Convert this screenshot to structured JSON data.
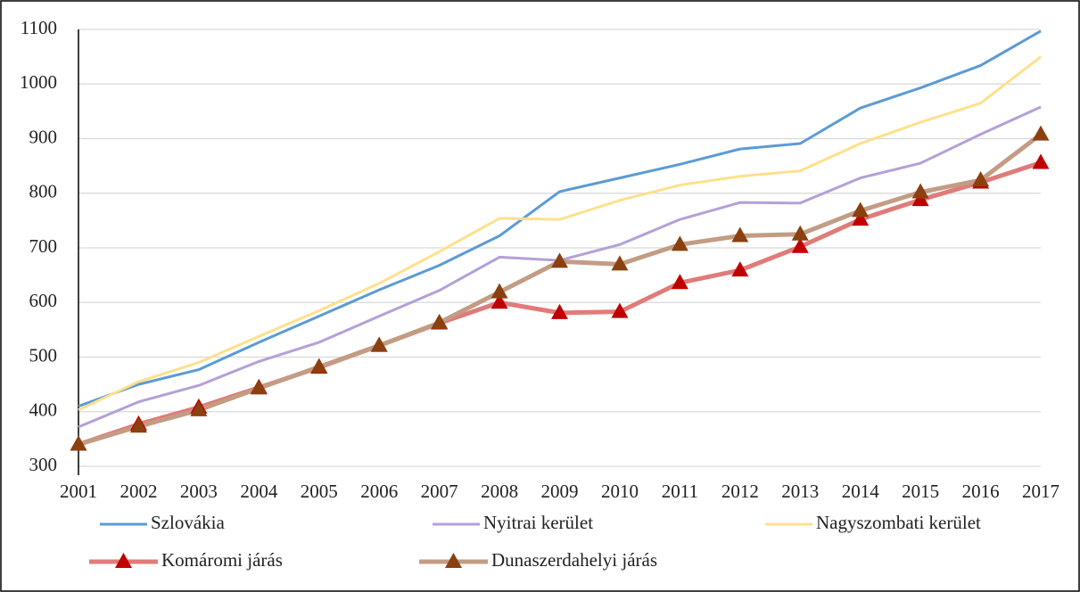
{
  "chart_data": {
    "type": "line",
    "categories": [
      "2001",
      "2002",
      "2003",
      "2004",
      "2005",
      "2006",
      "2007",
      "2008",
      "2009",
      "2010",
      "2011",
      "2012",
      "2013",
      "2014",
      "2015",
      "2016",
      "2017"
    ],
    "ylim": [
      300,
      1100
    ],
    "yticks": [
      300,
      400,
      500,
      600,
      700,
      800,
      900,
      1000,
      1100
    ],
    "grid": true,
    "series": [
      {
        "name": "Szlovákia",
        "color": "#5b9bd5",
        "values": [
          410,
          450,
          477,
          527,
          575,
          623,
          668,
          722,
          803,
          828,
          853,
          881,
          891,
          956,
          993,
          1034,
          1097
        ]
      },
      {
        "name": "Nyitrai kerület",
        "color": "#b4a0d8",
        "values": [
          372,
          418,
          448,
          492,
          527,
          575,
          622,
          683,
          677,
          706,
          752,
          783,
          782,
          828,
          855,
          908,
          958
        ]
      },
      {
        "name": "Nagyszombati kerület",
        "color": "#ffe08a",
        "values": [
          403,
          455,
          490,
          538,
          585,
          635,
          693,
          754,
          752,
          787,
          815,
          831,
          841,
          891,
          930,
          965,
          1050
        ]
      },
      {
        "name": "Komáromi járás",
        "color": "#e07b79",
        "marker": "triangle",
        "marker_color": "#c00000",
        "values": [
          340,
          377,
          408,
          444,
          481,
          521,
          562,
          600,
          581,
          583,
          636,
          659,
          702,
          752,
          788,
          820,
          856
        ]
      },
      {
        "name": "Dunaszerdahelyi járás",
        "color": "#c39c84",
        "marker": "triangle",
        "marker_color": "#8b4010",
        "values": [
          340,
          373,
          403,
          443,
          482,
          521,
          563,
          619,
          675,
          670,
          706,
          722,
          725,
          768,
          802,
          824,
          908
        ]
      }
    ]
  }
}
